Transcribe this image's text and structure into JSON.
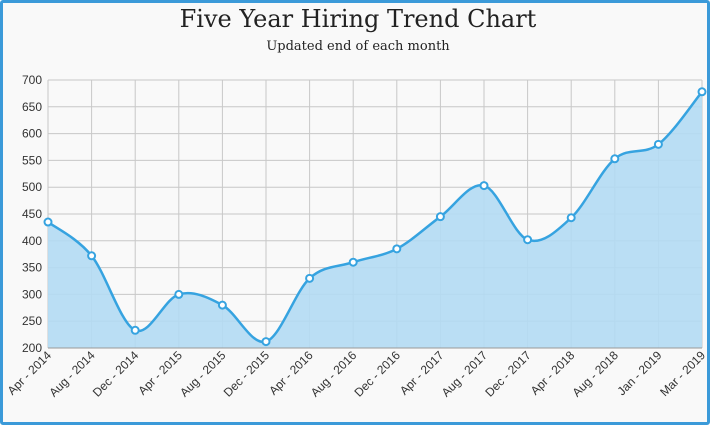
{
  "chart_data": {
    "type": "area",
    "title": "Five Year Hiring Trend Chart",
    "subtitle": "Updated end of each month",
    "categories": [
      "Apr - 2014",
      "Aug - 2014",
      "Dec - 2014",
      "Apr - 2015",
      "Aug - 2015",
      "Dec - 2015",
      "Apr - 2016",
      "Aug - 2016",
      "Dec - 2016",
      "Apr - 2017",
      "Aug - 2017",
      "Dec - 2017",
      "Apr - 2018",
      "Aug - 2018",
      "Jan - 2019",
      "Mar - 2019"
    ],
    "values": [
      435,
      372,
      233,
      300,
      280,
      212,
      330,
      360,
      385,
      445,
      503,
      402,
      443,
      553,
      580,
      678
    ],
    "color": "#36a3e0",
    "fill": "#b3daf3",
    "ylim": [
      200,
      700
    ],
    "yticks": [
      200,
      250,
      300,
      350,
      400,
      450,
      500,
      550,
      600,
      650,
      700
    ],
    "grid": true
  }
}
